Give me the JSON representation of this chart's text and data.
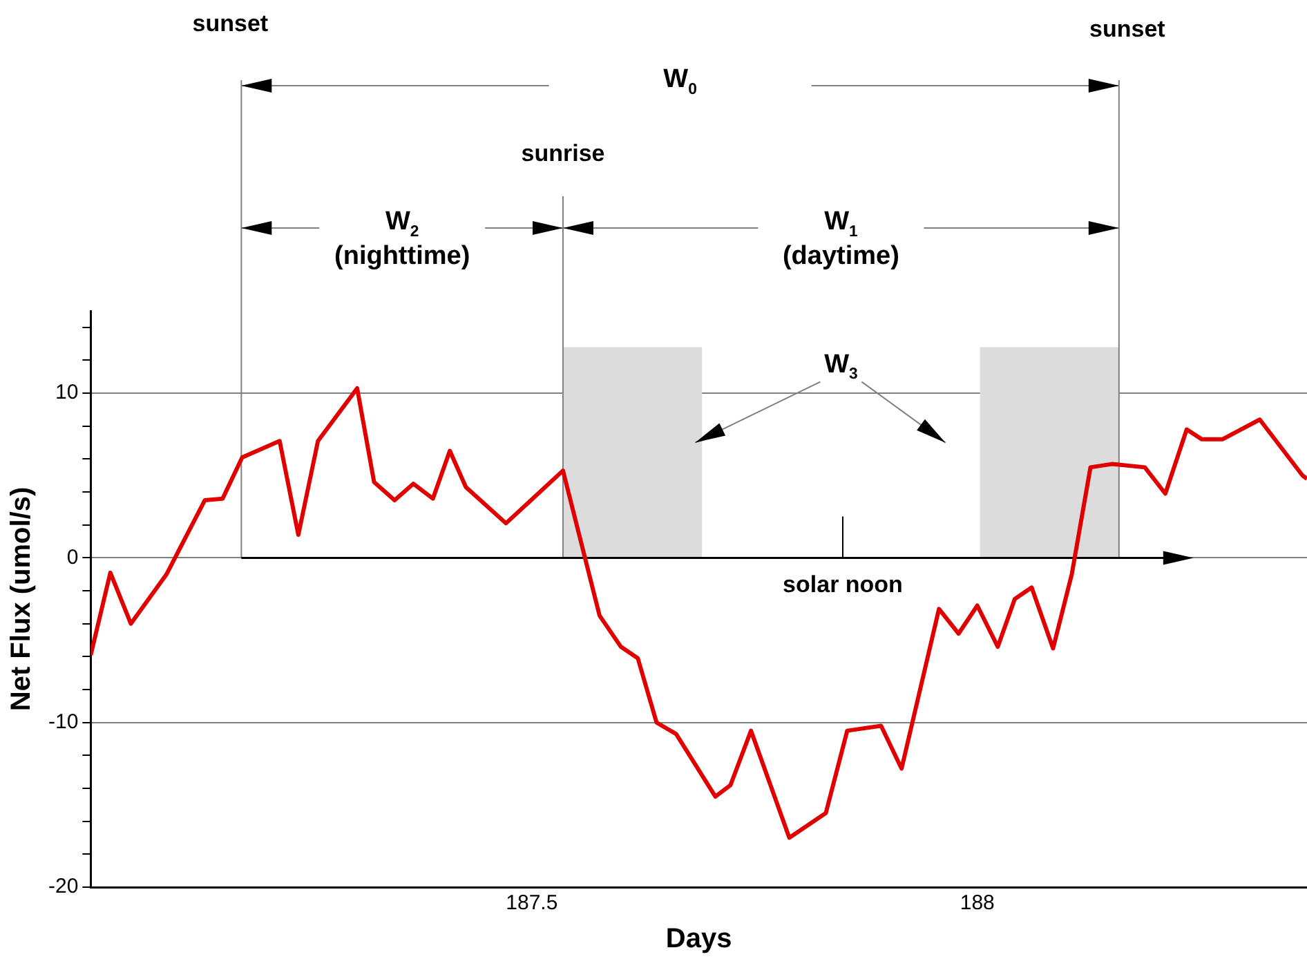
{
  "chart_data": {
    "type": "line",
    "xlabel": "Days",
    "ylabel": "Net Flux (umol/s)",
    "x": [
      187.005,
      187.027,
      187.05,
      187.09,
      187.133,
      187.153,
      187.175,
      187.217,
      187.238,
      187.26,
      187.304,
      187.323,
      187.346,
      187.367,
      187.389,
      187.408,
      187.426,
      187.471,
      187.535,
      187.576,
      187.6,
      187.619,
      187.64,
      187.662,
      187.706,
      187.723,
      187.746,
      187.789,
      187.83,
      187.854,
      187.892,
      187.915,
      187.957,
      187.979,
      188.0,
      188.023,
      188.042,
      188.061,
      188.085,
      188.106,
      188.127,
      188.151,
      188.188,
      188.211,
      188.235,
      188.252,
      188.275,
      188.317,
      188.365,
      188.37
    ],
    "series": [
      {
        "color": "#e00000",
        "values": [
          -5.9,
          -0.9,
          -4,
          -1,
          3.5,
          3.6,
          6.1,
          7.1,
          1.4,
          7.1,
          10.3,
          4.6,
          3.5,
          4.5,
          3.6,
          6.5,
          4.3,
          2.1,
          5.3,
          -3.5,
          -5.4,
          -6.1,
          -10,
          -10.7,
          -14.5,
          -13.8,
          -10.5,
          -17,
          -15.5,
          -10.5,
          -10.2,
          -12.8,
          -3.1,
          -4.6,
          -2.9,
          -5.4,
          -2.5,
          -1.8,
          -5.5,
          -1,
          5.5,
          5.7,
          5.5,
          3.9,
          7.8,
          7.2,
          7.2,
          8.4,
          5,
          4.8
        ]
      }
    ],
    "xlim": [
      187.005,
      188.37
    ],
    "xticks": [
      187.5,
      188
    ],
    "ylim": [
      -20,
      15
    ],
    "yticks": [
      -20,
      {
        "value": -18,
        "label": null
      },
      {
        "value": -16,
        "label": null
      },
      {
        "value": -14,
        "label": null
      },
      {
        "value": -12,
        "label": null
      },
      -10,
      {
        "value": -8,
        "label": null
      },
      {
        "value": -6,
        "label": null
      },
      {
        "value": -4,
        "label": null
      },
      {
        "value": -2,
        "label": null
      },
      0,
      {
        "value": 2,
        "label": null
      },
      {
        "value": 4,
        "label": null
      },
      {
        "value": 6,
        "label": null
      },
      {
        "value": 8,
        "label": null
      },
      10,
      {
        "value": 12,
        "label": null
      },
      {
        "value": 14,
        "label": null
      }
    ],
    "grid": "y",
    "legend": false,
    "marker": "none",
    "line_style": "solid",
    "bands": [
      {
        "axis": "x",
        "from": 187.535,
        "to": 187.691,
        "color": "#dcdcdc"
      },
      {
        "axis": "x",
        "from": 188.003,
        "to": 188.159,
        "color": "#dcdcdc"
      }
    ],
    "ref_lines": [
      {
        "axis": "x",
        "value": 187.174,
        "label": "sunset",
        "color": "#808080"
      },
      {
        "axis": "x",
        "value": 187.535,
        "label": "sunrise",
        "color": "#808080"
      },
      {
        "axis": "x",
        "value": 188.159,
        "label": "sunset",
        "color": "#808080"
      },
      {
        "axis": "y",
        "value": 0,
        "color": "#000000"
      }
    ],
    "annotations": [
      "W$_{0}$",
      "W$_{2}$",
      "(nighttime)",
      "W$_{1}$",
      "(daytime)",
      "W$_{3}$",
      {
        "text": "solar noon",
        "x": 187.849,
        "y": 0
      }
    ]
  }
}
